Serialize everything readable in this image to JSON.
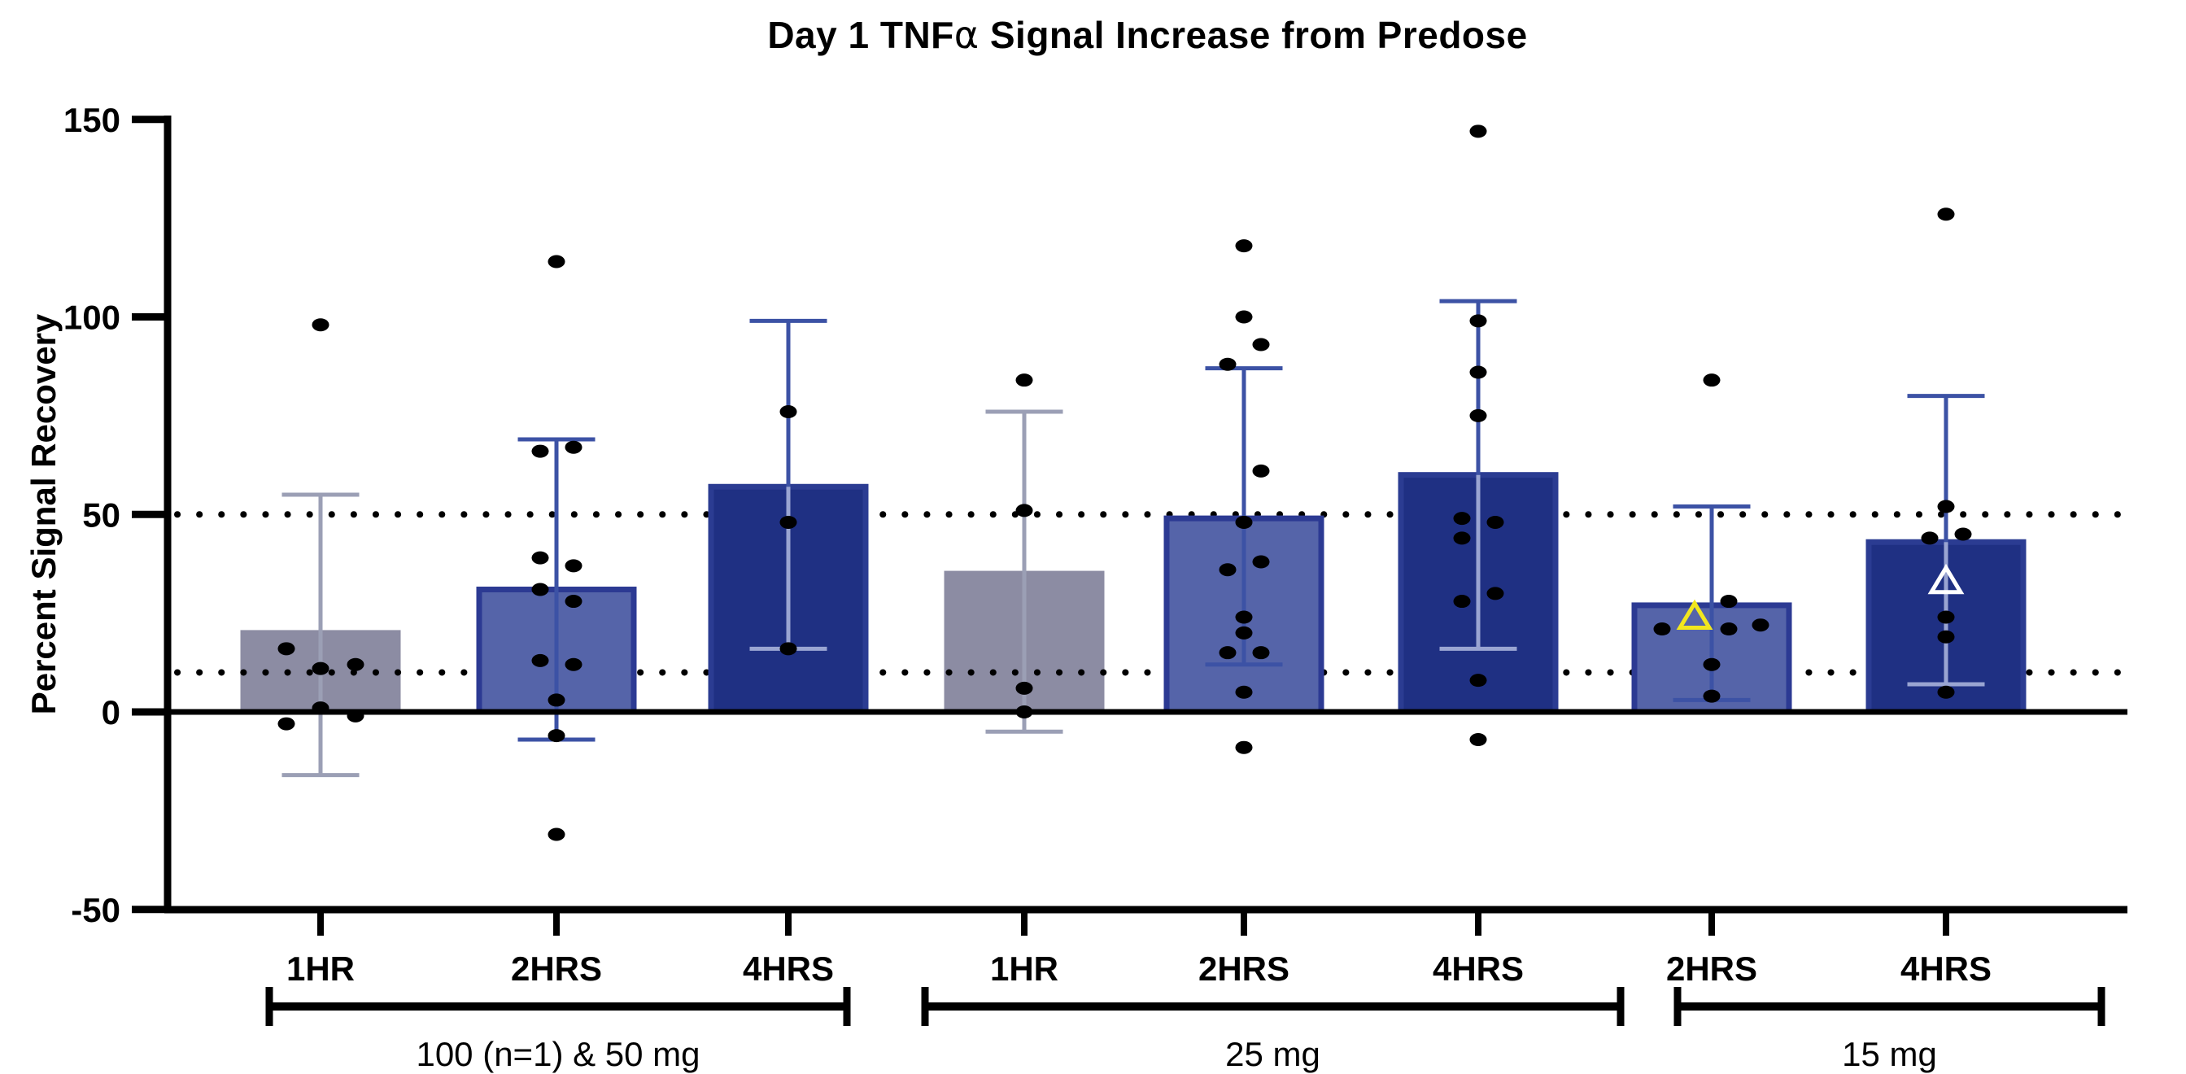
{
  "chart_data": {
    "type": "bar",
    "title": "Day 1 TNFα Signal Increase from Predose",
    "title_parts": {
      "pre": "Day 1 TNF",
      "alpha": "α",
      "post": " Signal Increase from Predose"
    },
    "ylabel": "Percent Signal Recovery",
    "ylim": [
      -50,
      150
    ],
    "yticks": [
      150,
      100,
      50,
      0,
      -50
    ],
    "reference_lines": [
      50,
      10
    ],
    "grid": "off",
    "legend": "none",
    "error_bar_type": "sd",
    "groups": [
      {
        "label": "100 (n=1) & 50 mg",
        "bars": [
          {
            "timepoint": "1HR",
            "style": "gray",
            "mean": 20,
            "err_low": -16,
            "err_high": 55,
            "points": [
              [
                0,
                98
              ],
              [
                -42,
                16
              ],
              [
                0,
                11
              ],
              [
                43,
                12
              ],
              [
                0,
                1
              ],
              [
                43,
                -1
              ],
              [
                -42,
                -3
              ]
            ]
          },
          {
            "timepoint": "2HRS",
            "style": "blue",
            "mean": 31,
            "err_low": -7,
            "err_high": 69,
            "points": [
              [
                0,
                114
              ],
              [
                -20,
                66
              ],
              [
                21,
                67
              ],
              [
                -20,
                39
              ],
              [
                21,
                37
              ],
              [
                -20,
                31
              ],
              [
                21,
                28
              ],
              [
                -20,
                13
              ],
              [
                21,
                12
              ],
              [
                0,
                3
              ],
              [
                0,
                -6
              ],
              [
                0,
                -31
              ]
            ]
          },
          {
            "timepoint": "4HRS",
            "style": "navy",
            "mean": 57,
            "err_low": 16,
            "err_high": 99,
            "points": [
              [
                0,
                76
              ],
              [
                0,
                48
              ],
              [
                0,
                16
              ]
            ]
          }
        ]
      },
      {
        "label": "25 mg",
        "bars": [
          {
            "timepoint": "1HR",
            "style": "gray",
            "mean": 35,
            "err_low": -5,
            "err_high": 76,
            "points": [
              [
                0,
                84
              ],
              [
                0,
                51
              ],
              [
                0,
                6
              ],
              [
                0,
                0
              ]
            ]
          },
          {
            "timepoint": "2HRS",
            "style": "blue",
            "mean": 49,
            "err_low": 12,
            "err_high": 87,
            "points": [
              [
                0,
                118
              ],
              [
                0,
                100
              ],
              [
                21,
                93
              ],
              [
                -20,
                88
              ],
              [
                21,
                61
              ],
              [
                0,
                48
              ],
              [
                21,
                38
              ],
              [
                -20,
                36
              ],
              [
                0,
                24
              ],
              [
                0,
                20
              ],
              [
                -20,
                15
              ],
              [
                21,
                15
              ],
              [
                0,
                5
              ],
              [
                0,
                -9
              ]
            ]
          },
          {
            "timepoint": "4HRS",
            "style": "navy",
            "mean": 60,
            "err_low": 16,
            "err_high": 104,
            "points": [
              [
                0,
                147
              ],
              [
                0,
                99
              ],
              [
                0,
                86
              ],
              [
                0,
                75
              ],
              [
                -20,
                49
              ],
              [
                21,
                48
              ],
              [
                -20,
                44
              ],
              [
                21,
                30
              ],
              [
                -20,
                28
              ],
              [
                0,
                8
              ],
              [
                0,
                -7
              ]
            ]
          }
        ]
      },
      {
        "label": "15 mg",
        "bars": [
          {
            "timepoint": "2HRS",
            "style": "blue",
            "mean": 27,
            "err_low": 3,
            "err_high": 52,
            "points": [
              [
                0,
                84
              ],
              [
                21,
                28
              ],
              [
                60,
                22
              ],
              [
                -61,
                21
              ],
              [
                21,
                21
              ],
              [
                0,
                12
              ],
              [
                0,
                4
              ]
            ],
            "special": [
              {
                "marker": "triangle",
                "color": "yellow",
                "dx": -21,
                "value": 24
              }
            ]
          },
          {
            "timepoint": "4HRS",
            "style": "navy",
            "mean": 43,
            "err_low": 7,
            "err_high": 80,
            "points": [
              [
                0,
                126
              ],
              [
                0,
                52
              ],
              [
                21,
                45
              ],
              [
                -20,
                44
              ],
              [
                0,
                24
              ],
              [
                0,
                19
              ],
              [
                0,
                5
              ]
            ],
            "special": [
              {
                "marker": "triangle",
                "color": "white",
                "dx": 0,
                "value": 33
              }
            ]
          }
        ]
      }
    ],
    "styles": {
      "gray": {
        "fill": "#8C8CA3",
        "stroke": "#8C8CA3",
        "error": "#9B9FB5"
      },
      "blue": {
        "fill": "#5564A9",
        "stroke": "#2C3A93",
        "error": "#3C52A5"
      },
      "navy": {
        "fill": "#1F3083",
        "stroke": "#2B3C92",
        "error": "#3C52A5",
        "error_inside": "#9AA5D2"
      }
    },
    "marker_colors": {
      "yellow": "#F2E71E",
      "white": "#FFFFFF"
    },
    "point_color": "#000000",
    "axis_color": "#000000"
  }
}
